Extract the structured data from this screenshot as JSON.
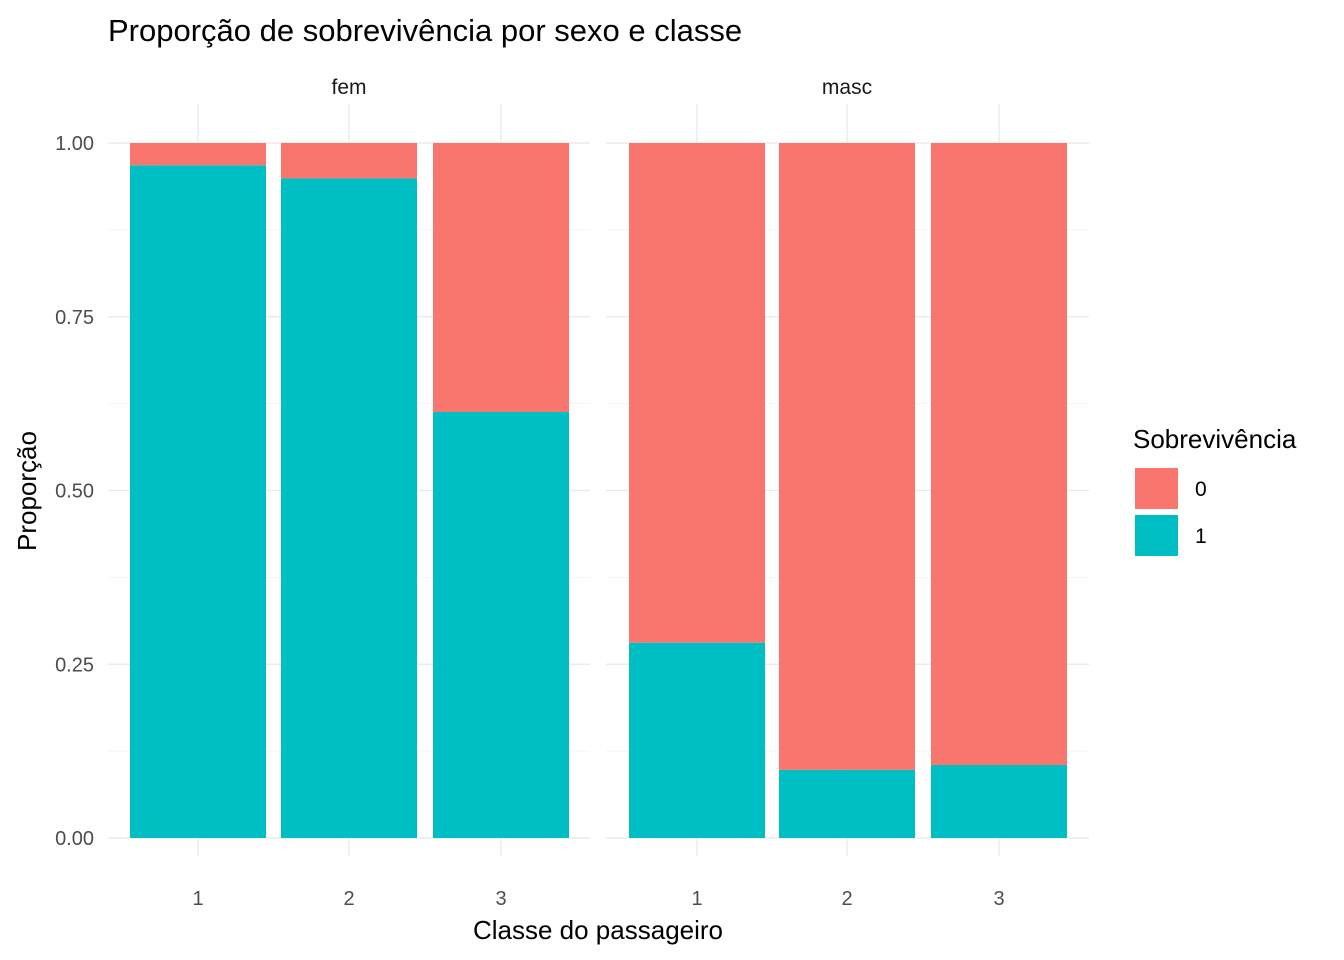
{
  "chart_data": {
    "type": "bar",
    "stacked": true,
    "title": "Proporção de sobrevivência por sexo e classe",
    "xlabel": "Classe do passageiro",
    "ylabel": "Proporção",
    "ylim": [
      0,
      1
    ],
    "yticks": [
      "0.00",
      "0.25",
      "0.50",
      "0.75",
      "1.00"
    ],
    "grid": true,
    "legend": {
      "title": "Sobrevivência",
      "position": "right",
      "items": [
        {
          "label": "0",
          "color": "#F8766D"
        },
        {
          "label": "1",
          "color": "#00BFC4"
        }
      ]
    },
    "facets": [
      {
        "label": "fem",
        "categories": [
          "1",
          "2",
          "3"
        ],
        "series": [
          {
            "name": "1",
            "values": [
              0.968,
              0.949,
              0.613
            ]
          },
          {
            "name": "0",
            "values": [
              0.032,
              0.051,
              0.387
            ]
          }
        ]
      },
      {
        "label": "masc",
        "categories": [
          "1",
          "2",
          "3"
        ],
        "series": [
          {
            "name": "1",
            "values": [
              0.281,
              0.098,
              0.105
            ]
          },
          {
            "name": "0",
            "values": [
              0.719,
              0.902,
              0.895
            ]
          }
        ]
      }
    ]
  }
}
